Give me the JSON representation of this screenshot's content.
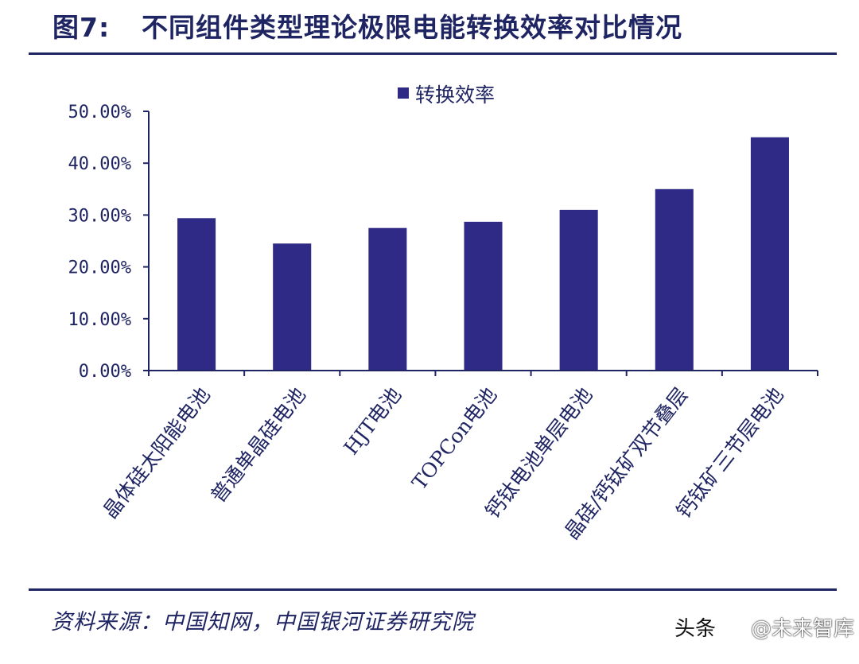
{
  "header": {
    "figure_label": "图7:",
    "title": "不同组件类型理论极限电能转换效率对比情况"
  },
  "chart_data": {
    "type": "bar",
    "categories": [
      "晶体硅太阳能电池",
      "普通单晶硅电池",
      "HJT电池",
      "TOPCon电池",
      "钙钛电池单层电池",
      "晶硅/钙钛矿双节叠层",
      "钙钛矿三节层电池"
    ],
    "series": [
      {
        "name": "转换效率",
        "values": [
          29.4,
          24.5,
          27.5,
          28.7,
          31.0,
          35.0,
          45.0
        ]
      }
    ],
    "ylim": [
      0,
      50
    ],
    "yticks": [
      0,
      10,
      20,
      30,
      40,
      50
    ],
    "ytick_labels": [
      "0.00%",
      "10.00%",
      "20.00%",
      "30.00%",
      "40.00%",
      "50.00%"
    ],
    "legend_position": "top-center",
    "grid": false,
    "bar_color": "#2e2a85"
  },
  "footer": {
    "source": "资料来源：中国知网，中国银河证券研究院"
  },
  "watermark": {
    "platform": "头条",
    "account": "@未来智库"
  },
  "colors": {
    "accent": "#1f2463",
    "bar": "#2e2a85"
  }
}
